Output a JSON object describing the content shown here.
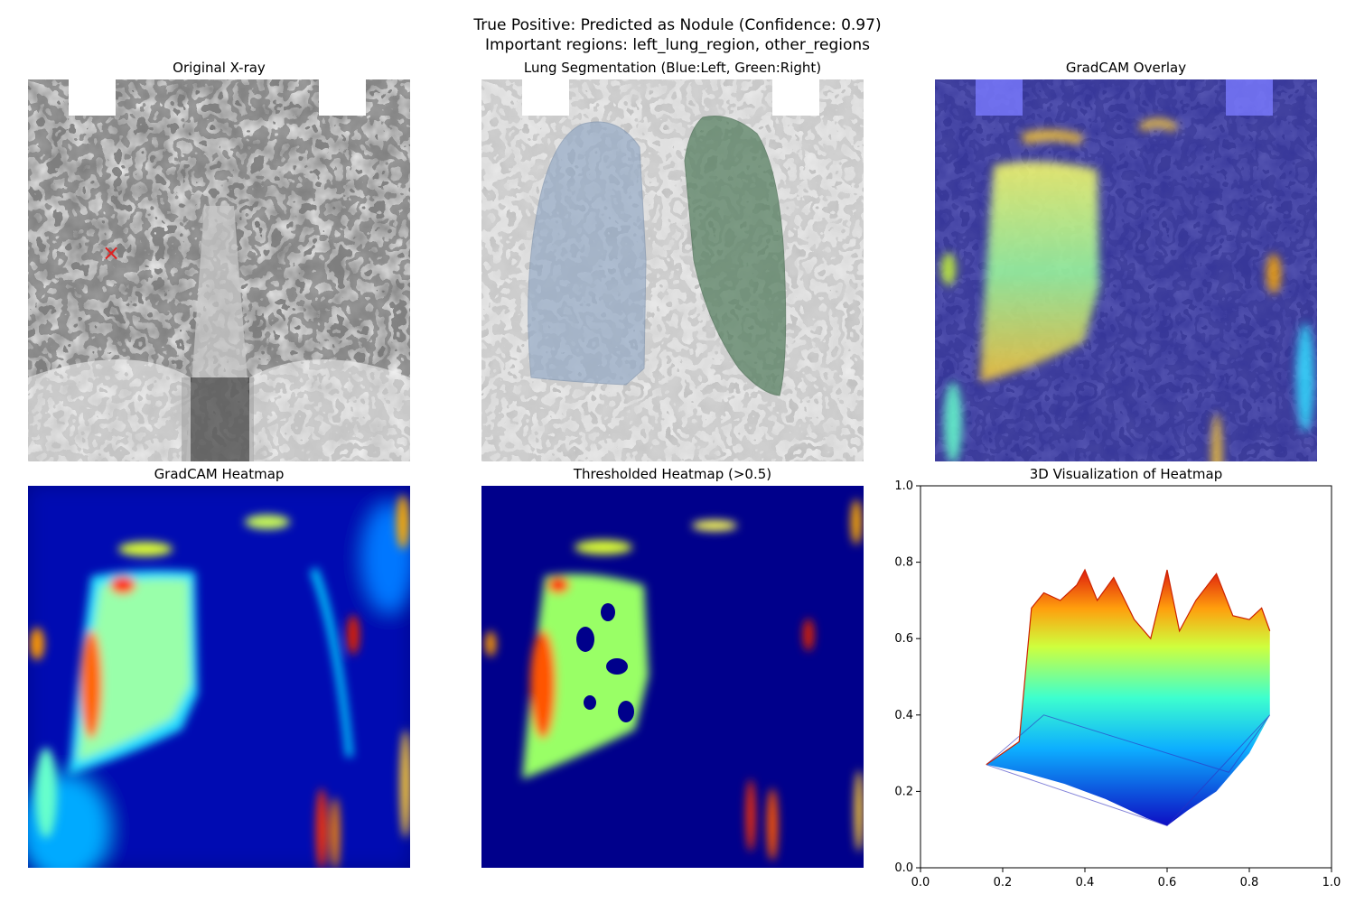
{
  "figure": {
    "title_line1": "True Positive: Predicted as Nodule (Confidence: 0.97)",
    "title_line2": "Important regions: left_lung_region, other_regions"
  },
  "panels": {
    "original": {
      "title": "Original X-ray",
      "marker": "×"
    },
    "segmentation": {
      "title": "Lung Segmentation (Blue:Left, Green:Right)"
    },
    "overlay": {
      "title": "GradCAM Overlay"
    },
    "heatmap": {
      "title": "GradCAM Heatmap"
    },
    "thresholded": {
      "title": "Thresholded Heatmap (>0.5)"
    },
    "visualization3d": {
      "title": "3D Visualization of Heatmap",
      "x_ticks": [
        "0.0",
        "0.2",
        "0.4",
        "0.6",
        "0.8",
        "1.0"
      ],
      "y_ticks": [
        "0.0",
        "0.2",
        "0.4",
        "0.6",
        "0.8",
        "1.0"
      ]
    }
  },
  "colors": {
    "xray_dark": "#3a3a3a",
    "xray_light": "#e8e8e8",
    "left_lung_tint": "#8fa6c4",
    "right_lung_tint": "#4f7a5a",
    "jet_background": "#00008b",
    "marker": "#e02020"
  },
  "chart_data": {
    "type": "area",
    "title": "3D Visualization of Heatmap",
    "xlim": [
      0,
      1
    ],
    "ylim": [
      0,
      1
    ],
    "x_ticks": [
      0.0,
      0.2,
      0.4,
      0.6,
      0.8,
      1.0
    ],
    "y_ticks": [
      0.0,
      0.2,
      0.4,
      0.6,
      0.8,
      1.0
    ],
    "surface_top_profile": {
      "x": [
        0.16,
        0.2,
        0.24,
        0.27,
        0.3,
        0.34,
        0.38,
        0.4,
        0.43,
        0.47,
        0.52,
        0.56,
        0.6,
        0.63,
        0.67,
        0.72,
        0.76,
        0.8,
        0.83,
        0.85
      ],
      "y": [
        0.27,
        0.3,
        0.33,
        0.68,
        0.72,
        0.7,
        0.74,
        0.78,
        0.7,
        0.76,
        0.65,
        0.6,
        0.78,
        0.62,
        0.7,
        0.77,
        0.66,
        0.65,
        0.68,
        0.62
      ]
    },
    "surface_base_profile": {
      "x": [
        0.16,
        0.25,
        0.35,
        0.45,
        0.55,
        0.6,
        0.65,
        0.72,
        0.8,
        0.85
      ],
      "y": [
        0.27,
        0.25,
        0.22,
        0.18,
        0.13,
        0.11,
        0.15,
        0.2,
        0.3,
        0.4
      ]
    }
  }
}
